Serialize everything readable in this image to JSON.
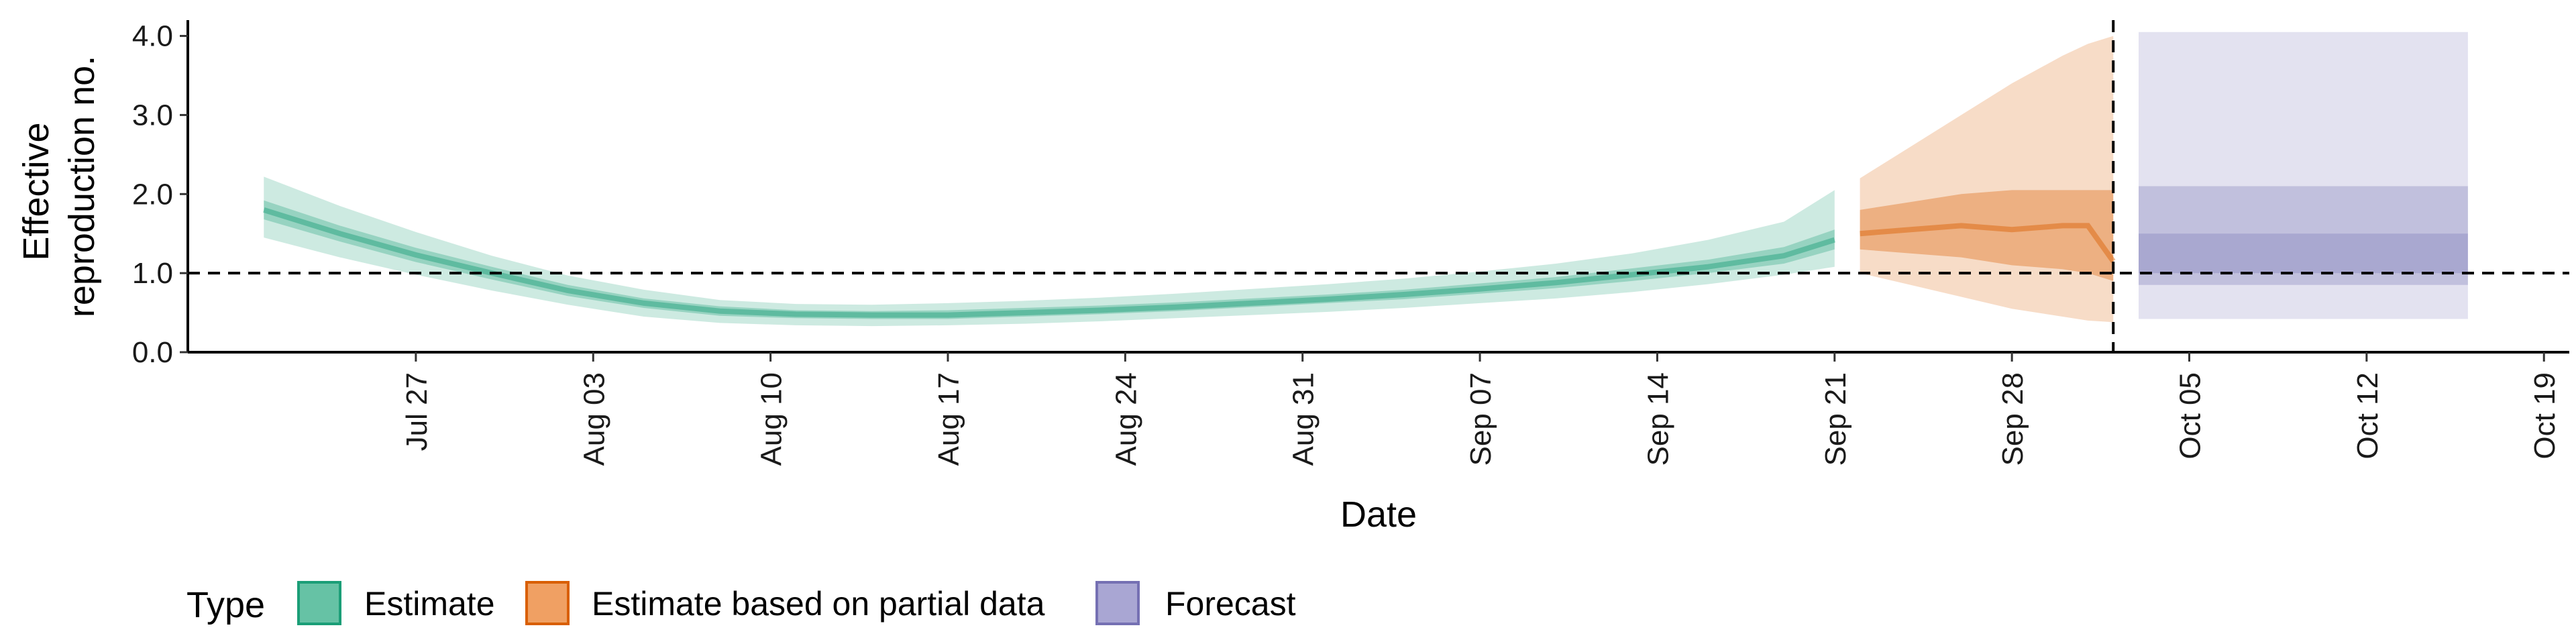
{
  "chart_data": {
    "type": "area",
    "title": "",
    "xlabel": "Date",
    "ylabel_lines": [
      "Effective",
      "reproduction no."
    ],
    "xlim": [
      "2020-07-18",
      "2020-10-20"
    ],
    "ylim": [
      0,
      4.2
    ],
    "y_ticks": [
      {
        "value": 0,
        "label": "0.0"
      },
      {
        "value": 1,
        "label": "1.0"
      },
      {
        "value": 2,
        "label": "2.0"
      },
      {
        "value": 3,
        "label": "3.0"
      },
      {
        "value": 4,
        "label": "4.0"
      }
    ],
    "x_ticks": [
      {
        "date": "2020-07-27",
        "label": "Jul 27"
      },
      {
        "date": "2020-08-03",
        "label": "Aug 03"
      },
      {
        "date": "2020-08-10",
        "label": "Aug 10"
      },
      {
        "date": "2020-08-17",
        "label": "Aug 17"
      },
      {
        "date": "2020-08-24",
        "label": "Aug 24"
      },
      {
        "date": "2020-08-31",
        "label": "Aug 31"
      },
      {
        "date": "2020-09-07",
        "label": "Sep 07"
      },
      {
        "date": "2020-09-14",
        "label": "Sep 14"
      },
      {
        "date": "2020-09-21",
        "label": "Sep 21"
      },
      {
        "date": "2020-09-28",
        "label": "Sep 28"
      },
      {
        "date": "2020-10-05",
        "label": "Oct 05"
      },
      {
        "date": "2020-10-12",
        "label": "Oct 12"
      },
      {
        "date": "2020-10-19",
        "label": "Oct 19"
      }
    ],
    "reference_lines": {
      "horizontal_y": 1.0,
      "vertical_date": "2020-10-02"
    },
    "grid": false,
    "legend": {
      "title": "Type",
      "position": "bottom-left",
      "entries": [
        {
          "label": "Estimate",
          "fill": "#66c2a5",
          "stroke": "#1b9e77"
        },
        {
          "label": "Estimate based on partial data",
          "fill": "#f0a063",
          "stroke": "#d95f02"
        },
        {
          "label": "Forecast",
          "fill": "#a9a6d3",
          "stroke": "#7570b3"
        }
      ]
    },
    "series": [
      {
        "name": "Estimate",
        "color": "#1b9e77",
        "dates": [
          "2020-07-21",
          "2020-07-24",
          "2020-07-27",
          "2020-07-30",
          "2020-08-02",
          "2020-08-05",
          "2020-08-08",
          "2020-08-11",
          "2020-08-14",
          "2020-08-17",
          "2020-08-20",
          "2020-08-23",
          "2020-08-26",
          "2020-08-29",
          "2020-09-01",
          "2020-09-04",
          "2020-09-07",
          "2020-09-10",
          "2020-09-13",
          "2020-09-16",
          "2020-09-19",
          "2020-09-21"
        ],
        "median": [
          1.8,
          1.5,
          1.23,
          1.0,
          0.78,
          0.62,
          0.52,
          0.48,
          0.47,
          0.47,
          0.5,
          0.53,
          0.57,
          0.62,
          0.67,
          0.73,
          0.8,
          0.88,
          0.98,
          1.08,
          1.22,
          1.42
        ],
        "lower_90": [
          1.45,
          1.2,
          0.98,
          0.78,
          0.6,
          0.45,
          0.37,
          0.34,
          0.33,
          0.34,
          0.36,
          0.39,
          0.43,
          0.47,
          0.51,
          0.56,
          0.62,
          0.68,
          0.76,
          0.86,
          0.98,
          1.08
        ],
        "upper_90": [
          2.22,
          1.85,
          1.52,
          1.22,
          0.97,
          0.79,
          0.66,
          0.61,
          0.6,
          0.62,
          0.65,
          0.69,
          0.74,
          0.8,
          0.86,
          0.93,
          1.02,
          1.12,
          1.25,
          1.42,
          1.65,
          2.05
        ],
        "lower_50": [
          1.68,
          1.4,
          1.14,
          0.92,
          0.71,
          0.56,
          0.46,
          0.43,
          0.42,
          0.42,
          0.45,
          0.48,
          0.52,
          0.57,
          0.62,
          0.67,
          0.74,
          0.81,
          0.9,
          1.0,
          1.12,
          1.3
        ],
        "upper_50": [
          1.92,
          1.6,
          1.32,
          1.08,
          0.85,
          0.68,
          0.58,
          0.53,
          0.52,
          0.53,
          0.56,
          0.59,
          0.63,
          0.68,
          0.73,
          0.79,
          0.87,
          0.95,
          1.06,
          1.17,
          1.33,
          1.55
        ]
      },
      {
        "name": "Estimate based on partial data",
        "color": "#d95f02",
        "dates": [
          "2020-09-22",
          "2020-09-24",
          "2020-09-26",
          "2020-09-28",
          "2020-09-30",
          "2020-10-01",
          "2020-10-02"
        ],
        "median": [
          1.5,
          1.55,
          1.6,
          1.55,
          1.6,
          1.6,
          1.15
        ],
        "lower_90": [
          1.0,
          0.85,
          0.7,
          0.55,
          0.45,
          0.4,
          0.38
        ],
        "upper_90": [
          2.2,
          2.6,
          3.0,
          3.4,
          3.75,
          3.9,
          4.0
        ],
        "lower_50": [
          1.3,
          1.25,
          1.2,
          1.1,
          1.05,
          1.0,
          0.9
        ],
        "upper_50": [
          1.8,
          1.9,
          2.0,
          2.05,
          2.05,
          2.05,
          2.05
        ]
      },
      {
        "name": "Forecast",
        "color": "#7570b3",
        "dates": [
          "2020-10-03",
          "2020-10-16"
        ],
        "median": [
          1.0,
          1.0
        ],
        "lower_90": [
          0.42,
          0.42
        ],
        "upper_90": [
          4.05,
          4.05
        ],
        "lower_50": [
          0.85,
          0.85
        ],
        "upper_50": [
          2.1,
          2.1
        ],
        "lower_20": [
          1.0,
          1.0
        ],
        "upper_20": [
          1.5,
          1.5
        ]
      }
    ]
  }
}
